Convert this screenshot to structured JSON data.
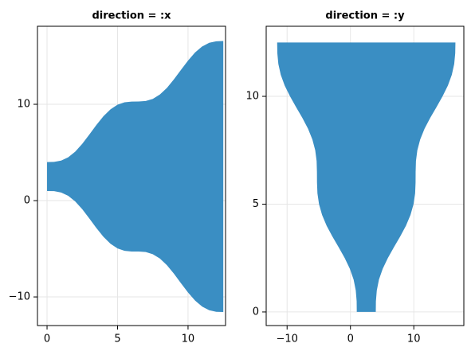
{
  "chart_data": [
    {
      "type": "band",
      "title": "direction = :x",
      "orientation": "x",
      "color": "#3a8ec3",
      "grid": true,
      "x": [
        0,
        0.5,
        1,
        1.5,
        2,
        2.5,
        3,
        3.5,
        4,
        4.5,
        5,
        5.5,
        6,
        6.5,
        7,
        7.5,
        8,
        8.5,
        9,
        9.5,
        10,
        10.5,
        11,
        11.5,
        12,
        12.5
      ],
      "lower": [
        1.0,
        0.98,
        0.84,
        0.5,
        -0.09,
        -0.9,
        -1.86,
        -2.85,
        -3.76,
        -4.48,
        -4.96,
        -5.21,
        -5.28,
        -5.29,
        -5.34,
        -5.56,
        -6.01,
        -6.7,
        -7.59,
        -8.58,
        -9.54,
        -10.38,
        -11.0,
        -11.38,
        -11.54,
        -11.57
      ],
      "upper": [
        4.0,
        4.02,
        4.16,
        4.5,
        5.09,
        5.9,
        6.86,
        7.85,
        8.76,
        9.48,
        9.96,
        10.21,
        10.28,
        10.29,
        10.34,
        10.56,
        11.01,
        11.7,
        12.59,
        13.58,
        14.54,
        15.38,
        16.0,
        16.38,
        16.54,
        16.57
      ],
      "xlim": [
        -0.68,
        12.66
      ],
      "xticks": [
        0,
        5,
        10
      ],
      "ylim": [
        -12.97,
        18.1
      ],
      "yticks": [
        {
          "value": -10,
          "label": "−10"
        },
        0,
        10
      ]
    },
    {
      "type": "band",
      "title": "direction = :y",
      "orientation": "y",
      "color": "#3a8ec3",
      "grid": true,
      "x": [
        0,
        0.5,
        1,
        1.5,
        2,
        2.5,
        3,
        3.5,
        4,
        4.5,
        5,
        5.5,
        6,
        6.5,
        7,
        7.5,
        8,
        8.5,
        9,
        9.5,
        10,
        10.5,
        11,
        11.5,
        12,
        12.5
      ],
      "lower": [
        1.0,
        0.98,
        0.84,
        0.5,
        -0.09,
        -0.9,
        -1.86,
        -2.85,
        -3.76,
        -4.48,
        -4.96,
        -5.21,
        -5.28,
        -5.29,
        -5.34,
        -5.56,
        -6.01,
        -6.7,
        -7.59,
        -8.58,
        -9.54,
        -10.38,
        -11.0,
        -11.38,
        -11.54,
        -11.57
      ],
      "upper": [
        4.0,
        4.02,
        4.16,
        4.5,
        5.09,
        5.9,
        6.86,
        7.85,
        8.76,
        9.48,
        9.96,
        10.21,
        10.28,
        10.29,
        10.34,
        10.56,
        11.01,
        11.7,
        12.59,
        13.58,
        14.54,
        15.38,
        16.0,
        16.38,
        16.54,
        16.57
      ],
      "xlim": [
        -13.3,
        17.9
      ],
      "xticks": [
        {
          "value": -10,
          "label": "−10"
        },
        0,
        10
      ],
      "ylim": [
        -0.63,
        13.25
      ],
      "yticks": [
        0,
        5,
        10
      ]
    }
  ]
}
